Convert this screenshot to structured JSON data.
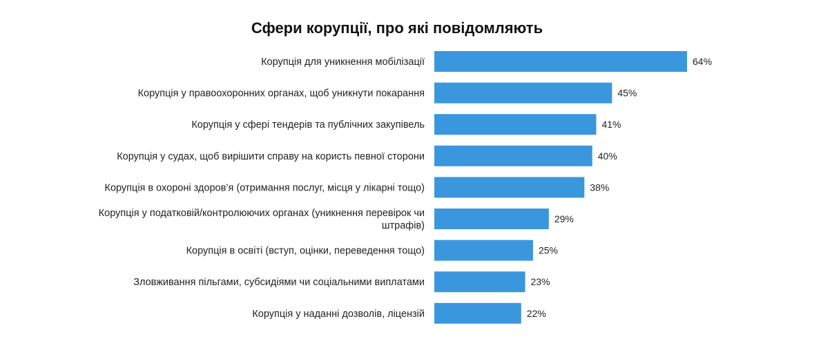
{
  "chart_data": {
    "type": "bar",
    "orientation": "horizontal",
    "title": "Сфери корупції, про які повідомляють",
    "xlabel": "",
    "ylabel": "",
    "xlim": [
      0,
      64
    ],
    "grid": false,
    "legend": "none",
    "bar_color": "#3a97dd",
    "value_suffix": "%",
    "categories": [
      [
        "Корупція для уникнення мобілізації"
      ],
      [
        "Корупція у правоохоронних органах, щоб уникнути покарання"
      ],
      [
        "Корупція у сфері тендерів та публічних закупівель"
      ],
      [
        "Корупція у судах, щоб вирішити справу на користь певної сторони"
      ],
      [
        "Корупція в охороні здоров’я (отримання послуг, місця у лікарні тощо)"
      ],
      [
        "Корупція у податковій/контролюючих органах (уникнення перевірок чи",
        "штрафів)"
      ],
      [
        "Корупція в освіті (вступ, оцінки, переведення тощо)"
      ],
      [
        "Зловживання пільгами, субсидіями чи соціальними виплатами"
      ],
      [
        "Корупція у наданні дозволів, ліцензій"
      ]
    ],
    "values": [
      64,
      45,
      41,
      40,
      38,
      29,
      25,
      23,
      22
    ],
    "value_labels": [
      "64%",
      "45%",
      "41%",
      "40%",
      "38%",
      "29%",
      "25%",
      "23%",
      "22%"
    ]
  }
}
